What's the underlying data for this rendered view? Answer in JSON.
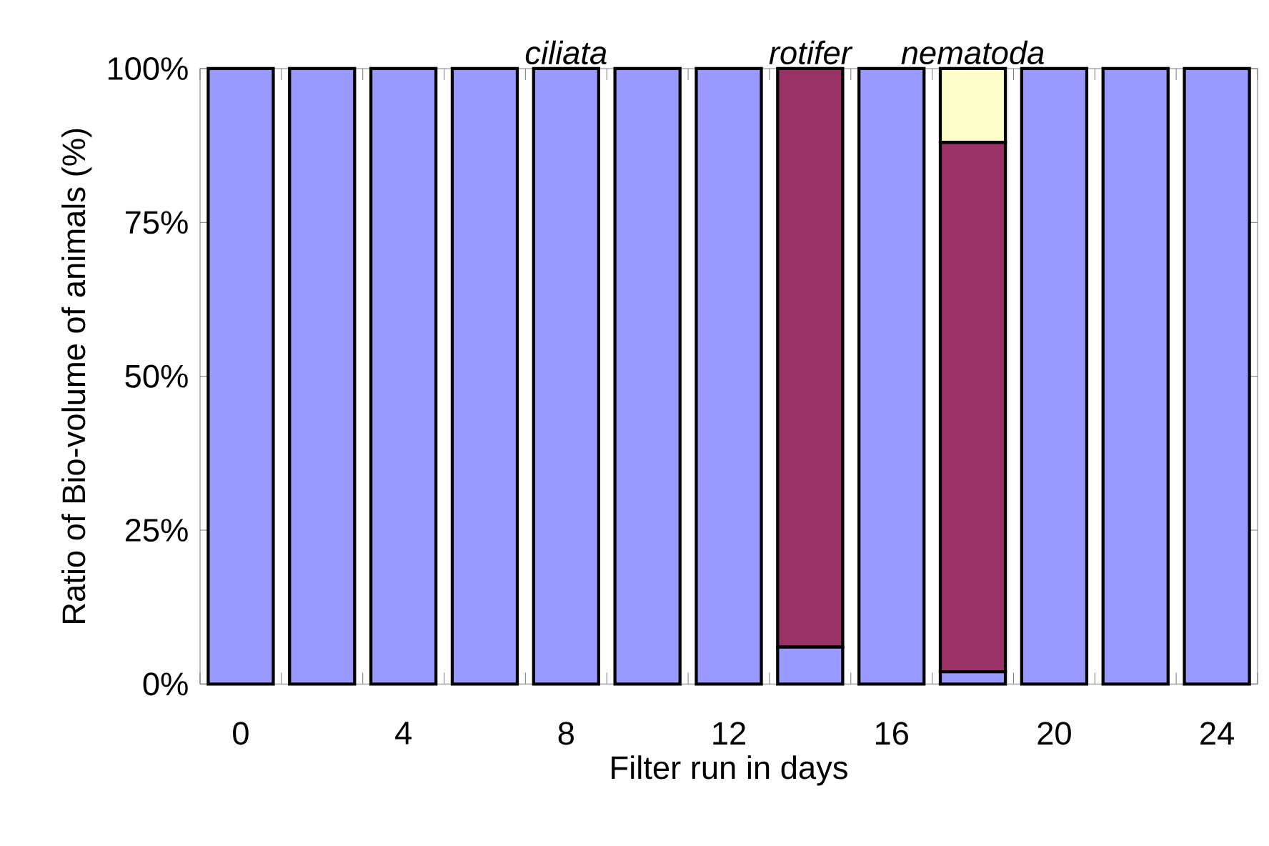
{
  "chart_data": {
    "type": "bar",
    "stacked": true,
    "xlabel": "Filter run in days",
    "ylabel": "Ratio of Bio-volume of animals (%)",
    "categories": [
      "0",
      null,
      "4",
      null,
      "8",
      null,
      "12",
      null,
      "16",
      null,
      "20",
      null,
      "24"
    ],
    "series": [
      {
        "name": "ciliata",
        "color": "#9999ff",
        "values": [
          100,
          100,
          100,
          100,
          100,
          100,
          100,
          6,
          100,
          2,
          100,
          100,
          100
        ]
      },
      {
        "name": "rotifer",
        "color": "#993366",
        "values": [
          0,
          0,
          0,
          0,
          0,
          0,
          0,
          94,
          0,
          86,
          0,
          0,
          0
        ]
      },
      {
        "name": "nematoda",
        "color": "#ffffcc",
        "values": [
          0,
          0,
          0,
          0,
          0,
          0,
          0,
          0,
          0,
          12,
          0,
          0,
          0
        ]
      }
    ],
    "ylim": [
      0,
      100
    ],
    "yticks": [
      {
        "value": 0,
        "label": "0%"
      },
      {
        "value": 25,
        "label": "25%"
      },
      {
        "value": 50,
        "label": "50%"
      },
      {
        "value": 75,
        "label": "75%"
      },
      {
        "value": 100,
        "label": "100%"
      }
    ],
    "legend": "top"
  }
}
